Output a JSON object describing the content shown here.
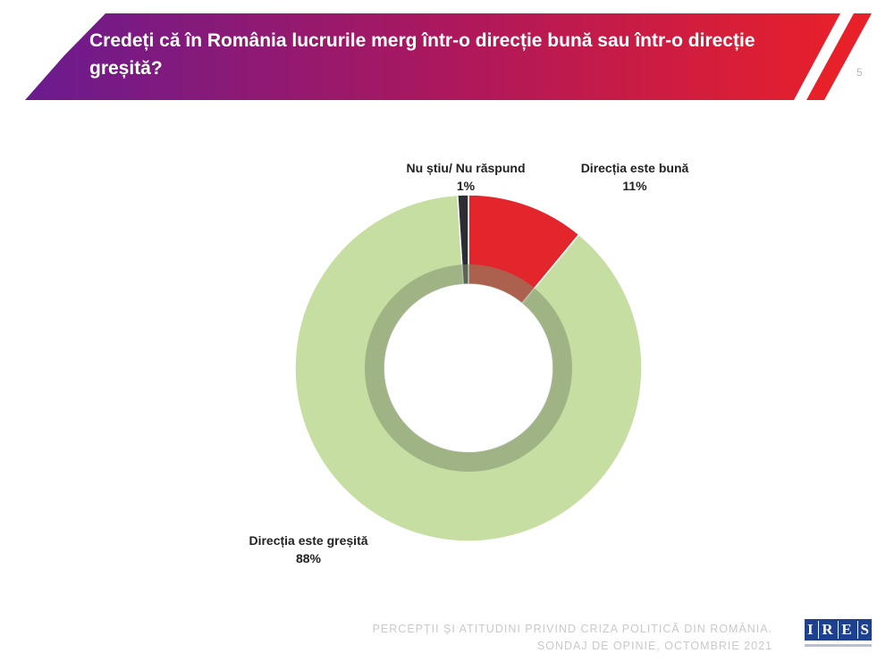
{
  "header": {
    "title": "Credeți că în România lucrurile merg într-o direcție bună sau într-o direcție greșită?",
    "page_number": "5",
    "colors": {
      "gradient_start": "#6a1b8f",
      "gradient_end": "#e8202a",
      "stripe": "#e8202a"
    }
  },
  "chart_data": {
    "type": "pie",
    "donut": true,
    "title": "",
    "slices": [
      {
        "label": "Directia este bună",
        "display_label": "Direcția este bună",
        "value": 11,
        "value_label": "11%",
        "color": "#e3262b"
      },
      {
        "label": "Directia este greșită",
        "display_label": "Direcția este greșită",
        "value": 88,
        "value_label": "88%",
        "color": "#c6dea2"
      },
      {
        "label": "Nu știu/ Nu răspund",
        "display_label": "Nu știu/ Nu răspund",
        "value": 1,
        "value_label": "1%",
        "color": "#2b2f33"
      }
    ]
  },
  "footer": {
    "line1": "PERCEPȚII ȘI ATITUDINI PRIVIND CRIZA POLITICĂ DIN ROMÂNIA.",
    "line2": "SONDAJ DE OPINIE, OCTOMBRIE 2021"
  },
  "logo": {
    "letters": [
      "I",
      "R",
      "E",
      "S"
    ],
    "color": "#1f3f8f"
  }
}
